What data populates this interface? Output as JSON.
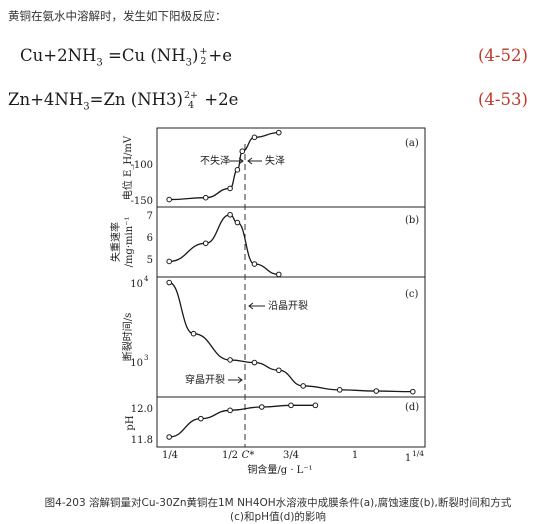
{
  "intro": "黄铜在氨水中溶解时，发生如下阳极反应：",
  "equations": {
    "eq1": {
      "a": "Cu+2NH",
      "a_sub": "3",
      "b": " =Cu (NH",
      "b_sub": "3",
      "c": ")",
      "frac_top": "+",
      "frac_bot": "2",
      "d": "+e",
      "number": "(4-52)"
    },
    "eq2": {
      "a": "Zn+4NH",
      "a_sub": "3",
      "b": "=Zn (NH3)",
      "frac_top": "2+",
      "frac_bot": "4",
      "d": " +2e",
      "number": "(4-53)"
    }
  },
  "figure": {
    "panels": {
      "a": {
        "tag": "(a)",
        "ylabel": "电位 E_H/mV",
        "yticks": [
          "-100",
          "-150"
        ],
        "left_label": "不失泽",
        "right_label": "失泽"
      },
      "b": {
        "tag": "(b)",
        "ylabel_line1": "失重速率",
        "ylabel_line2": "/mg·min⁻¹",
        "yticks": [
          "7",
          "6",
          "5"
        ]
      },
      "c": {
        "tag": "(c)",
        "ylabel": "断裂时间/s",
        "ytick_top_base": "10",
        "ytick_top_exp": "4",
        "ytick_bot_base": "10",
        "ytick_bot_exp": "3",
        "label_upper": "沿晶开裂",
        "label_lower": "穿晶开裂"
      },
      "d": {
        "tag": "(d)",
        "ylabel": "pH",
        "yticks": [
          "12.0",
          "11.8"
        ]
      }
    },
    "xticks": [
      "1/4",
      "1/2",
      "C*",
      "3/4",
      "1",
      "1"
    ],
    "xtick_last_frac": "1/4",
    "xlabel": "铜含量/g · L⁻¹"
  },
  "caption_line1": "图4-203  溶解铜量对Cu-30Zn黄铜在1M NH4OH水溶液中成膜条件(a),腐蚀速度(b),断裂时间和方式",
  "caption_line2": "(c)和pH值(d)的影响",
  "chart_data": [
    {
      "type": "line",
      "title": "(a)",
      "ylabel": "电位 E_H/mV",
      "x_unit": "g·L⁻¹",
      "x": [
        0.25,
        0.4,
        0.5,
        0.53,
        0.55,
        0.6,
        0.7
      ],
      "y": [
        -147,
        -145,
        -135,
        -115,
        -95,
        -80,
        -75
      ],
      "ylim": [
        -155,
        -70
      ],
      "xlim": [
        0.2,
        1.3
      ]
    },
    {
      "type": "line",
      "title": "(b)",
      "ylabel": "失重速率/mg·min⁻¹",
      "x": [
        0.25,
        0.4,
        0.5,
        0.53,
        0.6,
        0.7
      ],
      "y": [
        5.1,
        5.8,
        6.9,
        6.6,
        5.0,
        4.6
      ],
      "ylim": [
        4.5,
        7.2
      ],
      "xlim": [
        0.2,
        1.3
      ]
    },
    {
      "type": "line",
      "title": "(c)",
      "ylabel": "断裂时间/s",
      "y_scale": "log",
      "x": [
        0.25,
        0.35,
        0.5,
        0.6,
        0.7,
        0.8,
        0.95,
        1.1,
        1.25
      ],
      "y": [
        12000,
        2900,
        1400,
        1300,
        1050,
        680,
        610,
        590,
        580
      ],
      "ylim": [
        500,
        14000
      ],
      "xlim": [
        0.2,
        1.3
      ]
    },
    {
      "type": "line",
      "title": "(d)",
      "ylabel": "pH",
      "x": [
        0.25,
        0.38,
        0.5,
        0.63,
        0.75,
        0.85
      ],
      "y": [
        11.81,
        11.92,
        11.97,
        11.99,
        12.0,
        12.0
      ],
      "ylim": [
        11.75,
        12.05
      ],
      "xlim": [
        0.2,
        1.3
      ]
    }
  ]
}
